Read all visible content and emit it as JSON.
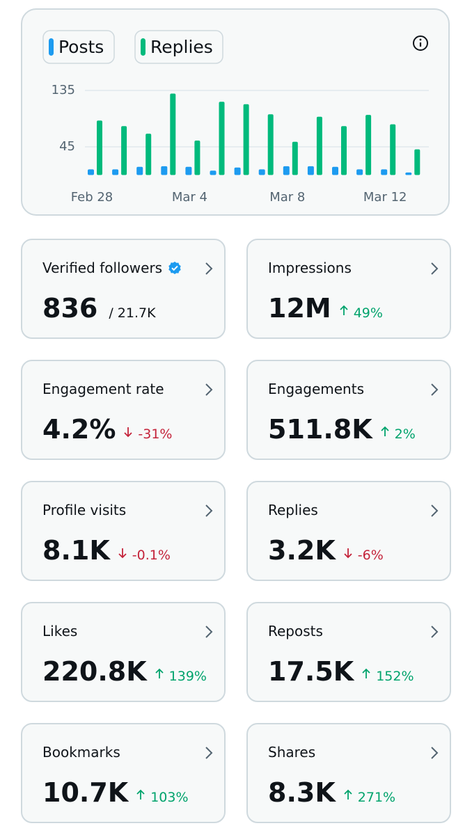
{
  "chart_data": {
    "type": "bar",
    "categories": [
      "Feb 28",
      null,
      null,
      null,
      "Mar 4",
      null,
      null,
      null,
      "Mar 8",
      null,
      null,
      null,
      "Mar 12",
      null
    ],
    "series": [
      {
        "name": "Posts",
        "color": "#1d9bf0",
        "values": [
          9,
          9,
          13,
          14,
          13,
          7,
          12,
          9,
          14,
          14,
          13,
          9,
          9,
          4
        ]
      },
      {
        "name": "Replies",
        "color": "#00ba7c",
        "values": [
          87,
          78,
          66,
          130,
          55,
          117,
          113,
          97,
          53,
          93,
          78,
          96,
          81,
          41
        ]
      }
    ],
    "ylim": [
      0,
      135
    ],
    "yticks": [
      45,
      135
    ],
    "grid": true
  },
  "cards": [
    {
      "label": "Verified followers",
      "value": "836",
      "total": "/ 21.7K",
      "verified": true
    },
    {
      "label": "Impressions",
      "value": "12M",
      "change": "49%",
      "trend": "up"
    },
    {
      "label": "Engagement rate",
      "value": "4.2%",
      "change": "-31%",
      "trend": "down"
    },
    {
      "label": "Engagements",
      "value": "511.8K",
      "change": "2%",
      "trend": "up"
    },
    {
      "label": "Profile visits",
      "value": "8.1K",
      "change": "-0.1%",
      "trend": "down"
    },
    {
      "label": "Replies",
      "value": "3.2K",
      "change": "-6%",
      "trend": "down"
    },
    {
      "label": "Likes",
      "value": "220.8K",
      "change": "139%",
      "trend": "up"
    },
    {
      "label": "Reposts",
      "value": "17.5K",
      "change": "152%",
      "trend": "up"
    },
    {
      "label": "Bookmarks",
      "value": "10.7K",
      "change": "103%",
      "trend": "up"
    },
    {
      "label": "Shares",
      "value": "8.3K",
      "change": "271%",
      "trend": "up"
    }
  ]
}
